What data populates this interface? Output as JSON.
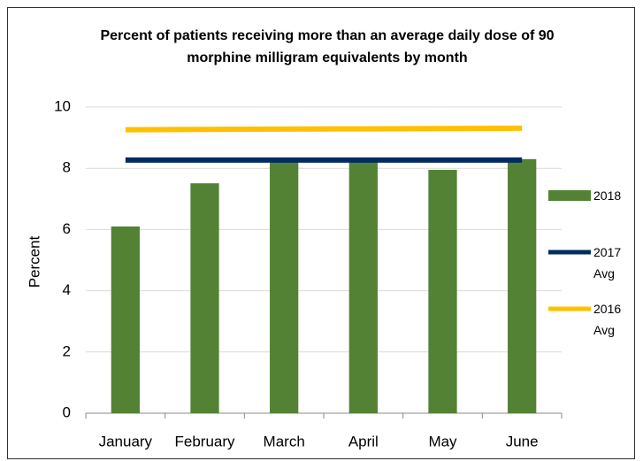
{
  "chart_data": {
    "type": "bar",
    "title": "Percent of patients receiving more than an average daily dose of 90 morphine milligram equivalents by month",
    "y_label": "Percent",
    "categories": [
      "January",
      "February",
      "March",
      "April",
      "May",
      "June"
    ],
    "series": [
      {
        "name": "2018",
        "type": "bar",
        "color": "#548235",
        "values": [
          6.1,
          7.51,
          8.3,
          8.3,
          7.95,
          8.3
        ]
      },
      {
        "name": "2017 Avg",
        "type": "line",
        "color": "#002c5f",
        "values": [
          8.27,
          8.27,
          8.27,
          8.27,
          8.27,
          8.27
        ]
      },
      {
        "name": "2016 Avg",
        "type": "line",
        "color": "#ffc000",
        "values": [
          9.26,
          9.27,
          9.28,
          9.29,
          9.3,
          9.31
        ]
      }
    ],
    "ylim": [
      0,
      10
    ],
    "yticks": [
      0,
      2,
      4,
      6,
      8,
      10
    ],
    "grid": true,
    "legend": "right"
  }
}
